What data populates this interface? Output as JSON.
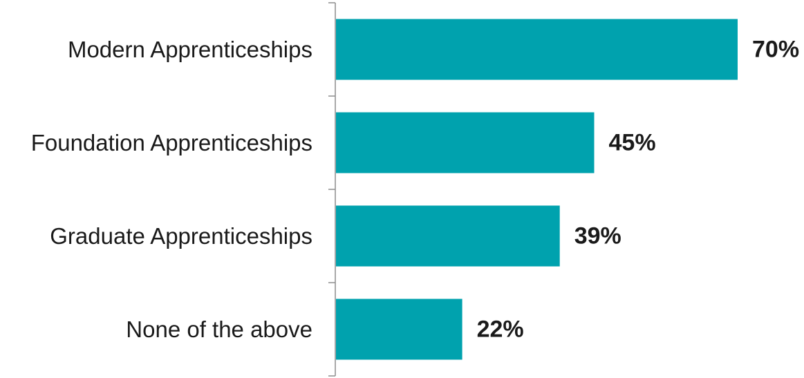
{
  "chart_data": {
    "type": "bar",
    "orientation": "horizontal",
    "title": "",
    "xlabel": "",
    "ylabel": "",
    "categories": [
      "Modern Apprenticeships",
      "Foundation Apprenticeships",
      "Graduate Apprenticeships",
      "None of the above"
    ],
    "values": [
      70,
      45,
      39,
      22
    ],
    "value_labels": [
      "70%",
      "45%",
      "39%",
      "22%"
    ],
    "unit": "%",
    "xlim": [
      0,
      70
    ],
    "grid": false,
    "legend": "none",
    "bar_color": "#00A2AE",
    "axis_color": "#8c8c8c",
    "text_color": "#1a1a1a"
  }
}
